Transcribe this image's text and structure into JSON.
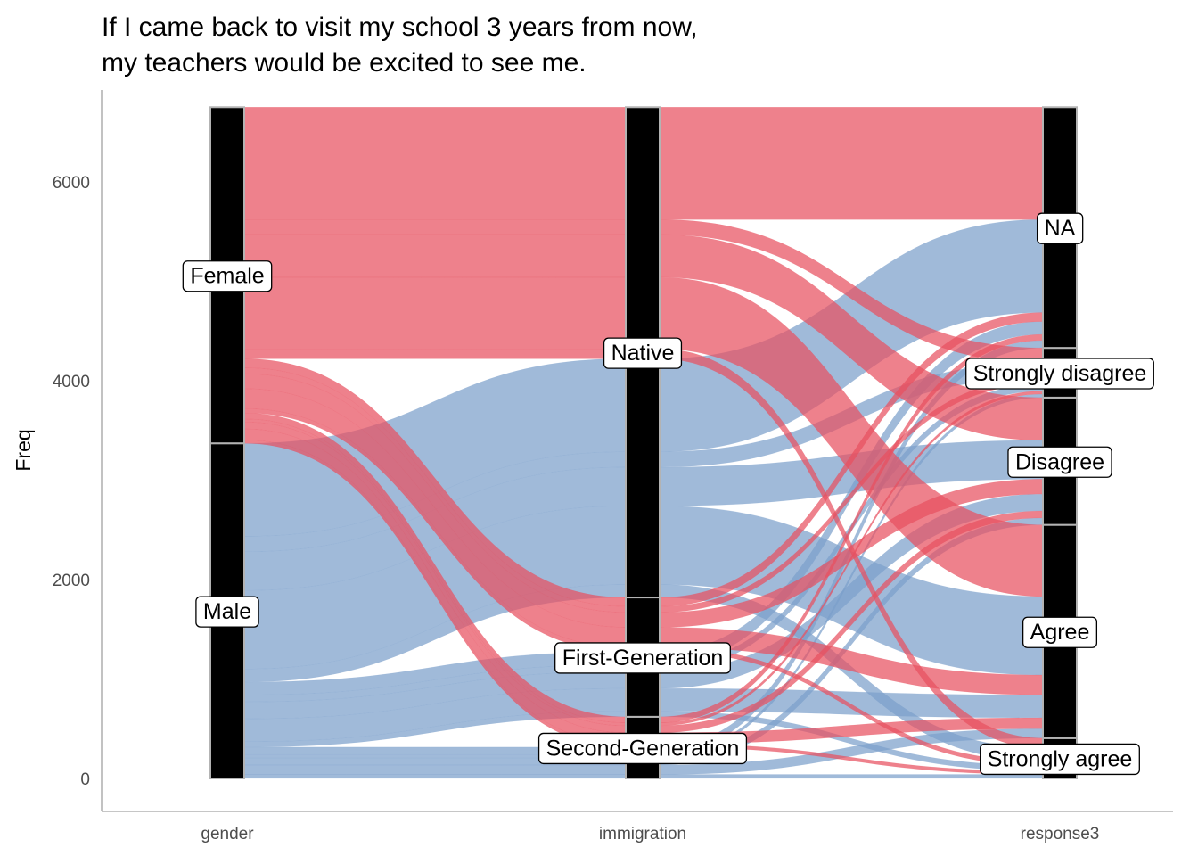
{
  "chart_data": {
    "type": "alluvial",
    "title": [
      "If I came back to visit my school 3 years from now,",
      "my teachers would be excited to see me."
    ],
    "ylabel": "Freq",
    "ylim": [
      0,
      6600
    ],
    "yticks": [
      0,
      2000,
      4000,
      6000
    ],
    "grid": false,
    "axes": [
      "gender",
      "immigration",
      "response3"
    ],
    "colors": {
      "Female": "#E8505F",
      "Male": "#7C9FCA"
    },
    "strata": {
      "gender": [
        "Male",
        "Female"
      ],
      "immigration": [
        "Second-Generation",
        "First-Generation",
        "Native"
      ],
      "response3": [
        "Strongly agree",
        "Agree",
        "Disagree",
        "Strongly disagree",
        "NA"
      ]
    },
    "flows": [
      {
        "gender": "Male",
        "immigration": "Second-Generation",
        "response3": "Strongly agree",
        "value": 40
      },
      {
        "gender": "Male",
        "immigration": "Second-Generation",
        "response3": "Agree",
        "value": 95
      },
      {
        "gender": "Male",
        "immigration": "Second-Generation",
        "response3": "Disagree",
        "value": 70
      },
      {
        "gender": "Male",
        "immigration": "Second-Generation",
        "response3": "Strongly disagree",
        "value": 35
      },
      {
        "gender": "Male",
        "immigration": "Second-Generation",
        "response3": "NA",
        "value": 75
      },
      {
        "gender": "Male",
        "immigration": "First-Generation",
        "response3": "Strongly agree",
        "value": 55
      },
      {
        "gender": "Male",
        "immigration": "First-Generation",
        "response3": "Agree",
        "value": 230
      },
      {
        "gender": "Male",
        "immigration": "First-Generation",
        "response3": "Disagree",
        "value": 170
      },
      {
        "gender": "Male",
        "immigration": "First-Generation",
        "response3": "Strongly disagree",
        "value": 70
      },
      {
        "gender": "Male",
        "immigration": "First-Generation",
        "response3": "NA",
        "value": 130
      },
      {
        "gender": "Male",
        "immigration": "Native",
        "response3": "Strongly agree",
        "value": 130
      },
      {
        "gender": "Male",
        "immigration": "Native",
        "response3": "Agree",
        "value": 790
      },
      {
        "gender": "Male",
        "immigration": "Native",
        "response3": "Disagree",
        "value": 390
      },
      {
        "gender": "Male",
        "immigration": "Native",
        "response3": "Strongly disagree",
        "value": 155
      },
      {
        "gender": "Male",
        "immigration": "Native",
        "response3": "NA",
        "value": 935
      },
      {
        "gender": "Female",
        "immigration": "Second-Generation",
        "response3": "Strongly agree",
        "value": 35
      },
      {
        "gender": "Female",
        "immigration": "Second-Generation",
        "response3": "Agree",
        "value": 110
      },
      {
        "gender": "Female",
        "immigration": "Second-Generation",
        "response3": "Disagree",
        "value": 70
      },
      {
        "gender": "Female",
        "immigration": "Second-Generation",
        "response3": "Strongly disagree",
        "value": 30
      },
      {
        "gender": "Female",
        "immigration": "Second-Generation",
        "response3": "NA",
        "value": 60
      },
      {
        "gender": "Female",
        "immigration": "First-Generation",
        "response3": "Strongly agree",
        "value": 45
      },
      {
        "gender": "Female",
        "immigration": "First-Generation",
        "response3": "Agree",
        "value": 200
      },
      {
        "gender": "Female",
        "immigration": "First-Generation",
        "response3": "Disagree",
        "value": 150
      },
      {
        "gender": "Female",
        "immigration": "First-Generation",
        "response3": "Strongly disagree",
        "value": 60
      },
      {
        "gender": "Female",
        "immigration": "First-Generation",
        "response3": "NA",
        "value": 90
      },
      {
        "gender": "Female",
        "immigration": "Native",
        "response3": "Strongly agree",
        "value": 100
      },
      {
        "gender": "Female",
        "immigration": "Native",
        "response3": "Agree",
        "value": 720
      },
      {
        "gender": "Female",
        "immigration": "Native",
        "response3": "Disagree",
        "value": 430
      },
      {
        "gender": "Female",
        "immigration": "Native",
        "response3": "Strongly disagree",
        "value": 150
      },
      {
        "gender": "Female",
        "immigration": "Native",
        "response3": "NA",
        "value": 1130
      }
    ]
  }
}
